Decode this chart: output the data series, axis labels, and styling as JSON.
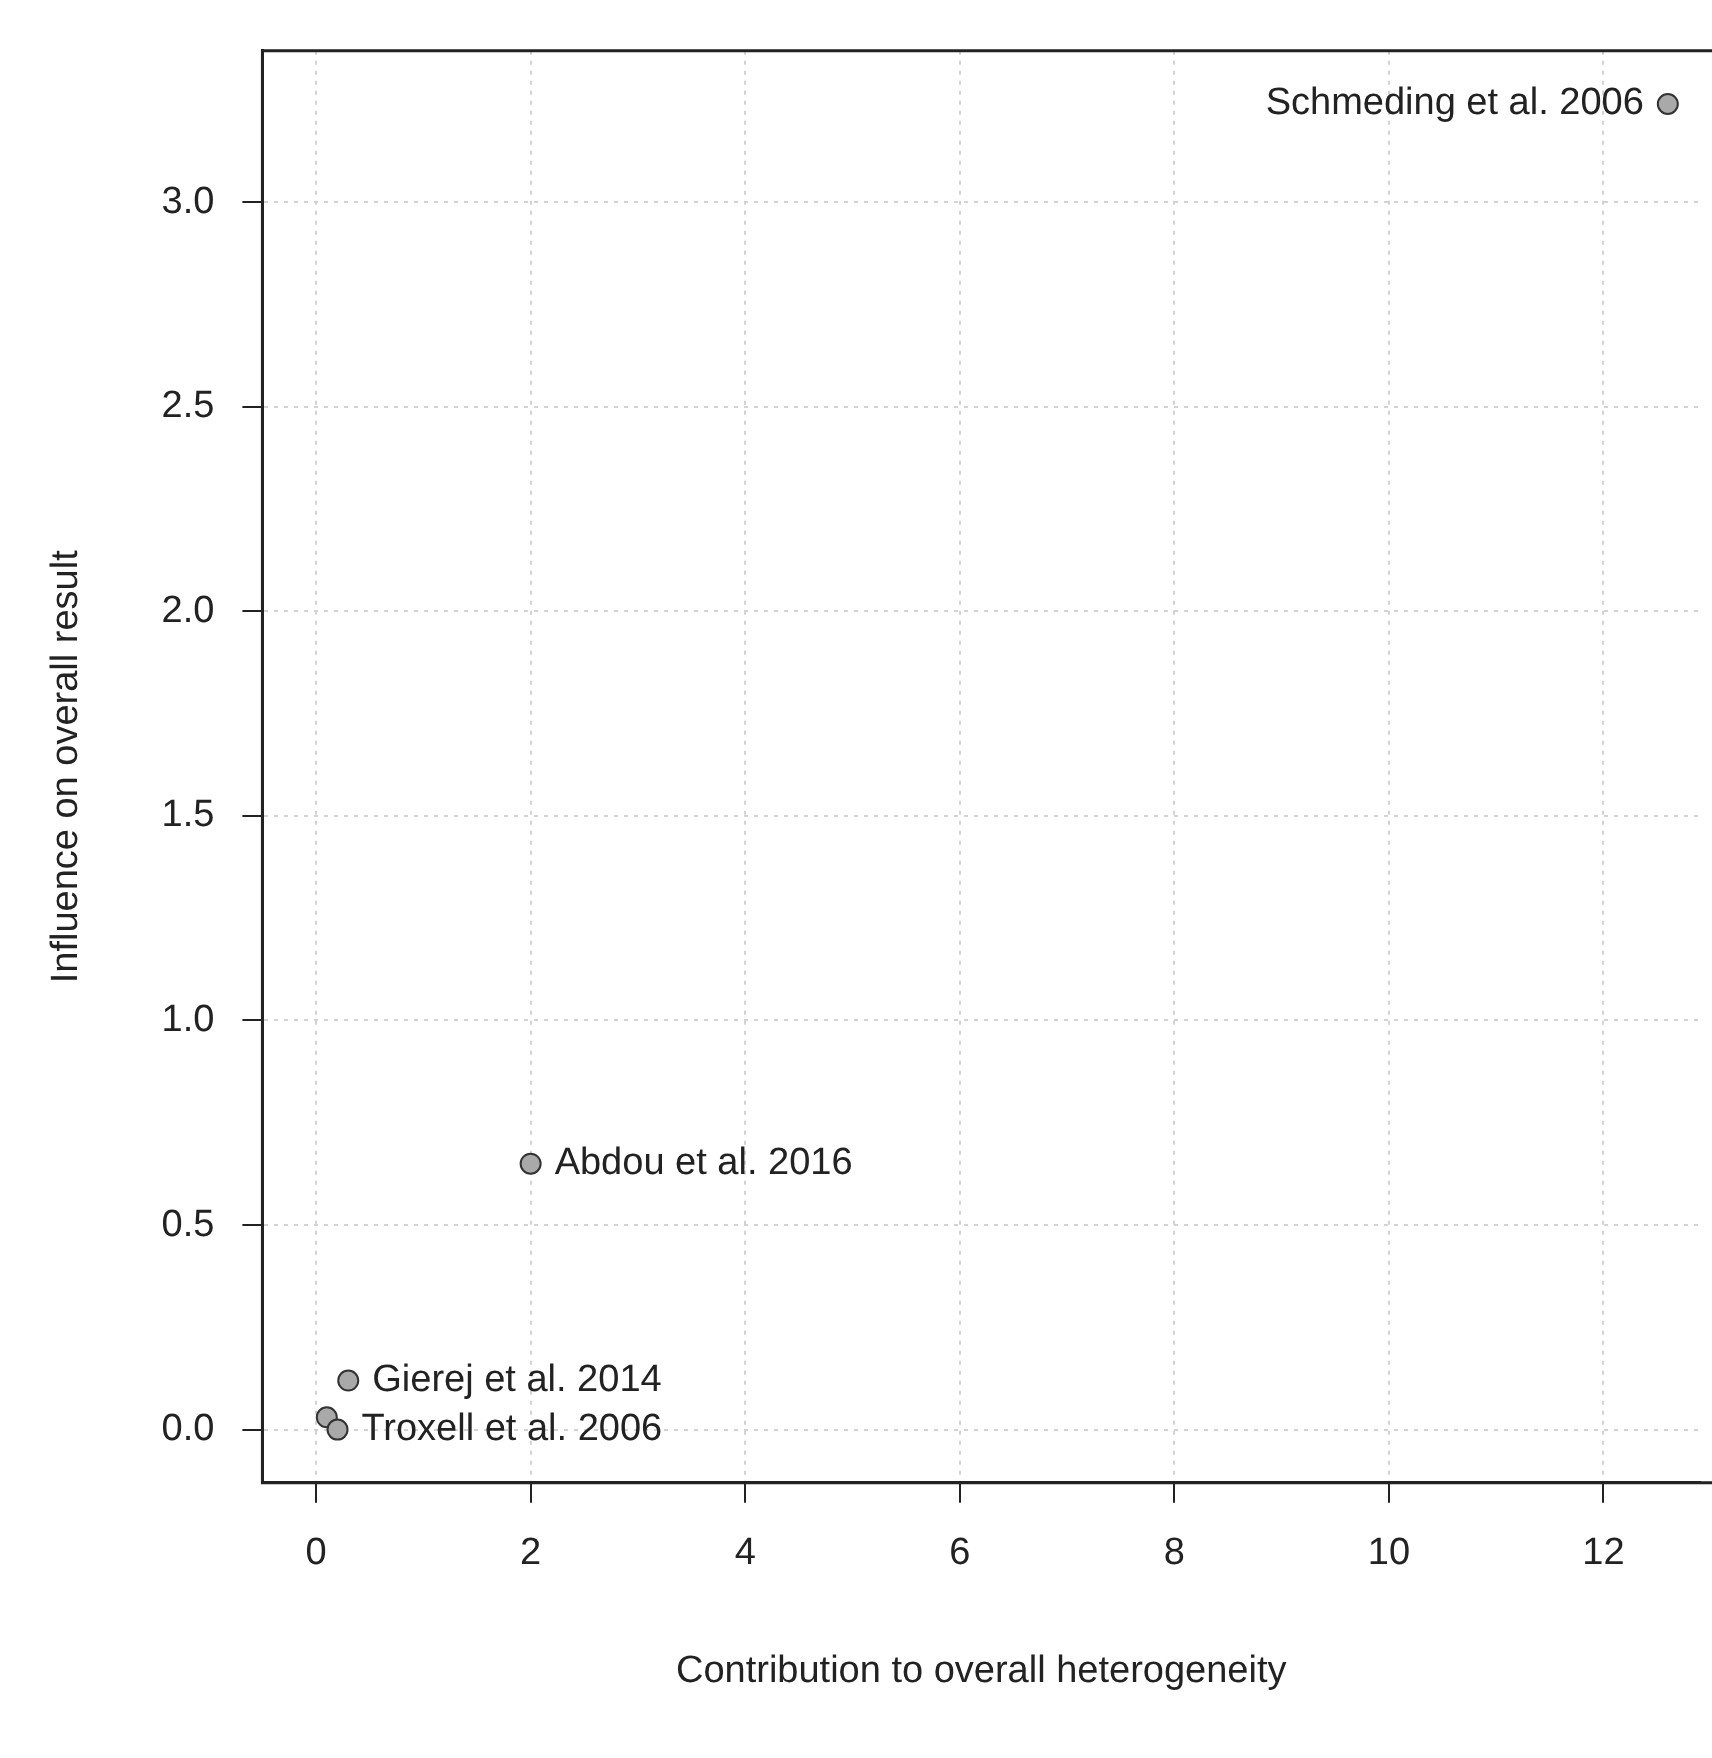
{
  "chart_data": {
    "type": "scatter",
    "xlabel": "Contribution to overall heterogeneity",
    "ylabel": "Influence on overall result",
    "x": [
      12.6,
      2.0,
      0.3,
      0.1,
      0.2
    ],
    "values": [
      3.24,
      0.65,
      0.12,
      0.03,
      0.0
    ],
    "color": "#a9a9a9",
    "marker": "circle",
    "grid": true,
    "legend": false,
    "xlim": [
      -0.5,
      12.9
    ],
    "xticks": [
      0,
      2,
      4,
      6,
      8,
      10,
      12
    ],
    "ylim": [
      -0.13,
      3.37
    ],
    "yticks": [
      {
        "value": 0,
        "label": "0.0"
      },
      {
        "value": 0.5,
        "label": "0.5"
      },
      {
        "value": 1,
        "label": "1.0"
      },
      {
        "value": 1.5,
        "label": "1.5"
      },
      {
        "value": 2,
        "label": "2.0"
      },
      {
        "value": 2.5,
        "label": "2.5"
      },
      {
        "value": 3,
        "label": "3.0"
      }
    ],
    "annotations": [
      {
        "text": "Schmeding et al. 2006",
        "x": 12.6,
        "y": 3.24
      },
      {
        "text": "Abdou et al. 2016",
        "x": 2.0,
        "y": 0.65
      },
      {
        "text": "Gierej et al. 2014",
        "x": 0.3,
        "y": 0.12
      },
      {
        "text": "Troxell et al. 2006",
        "x": 0.2,
        "y": 0.0
      }
    ]
  }
}
